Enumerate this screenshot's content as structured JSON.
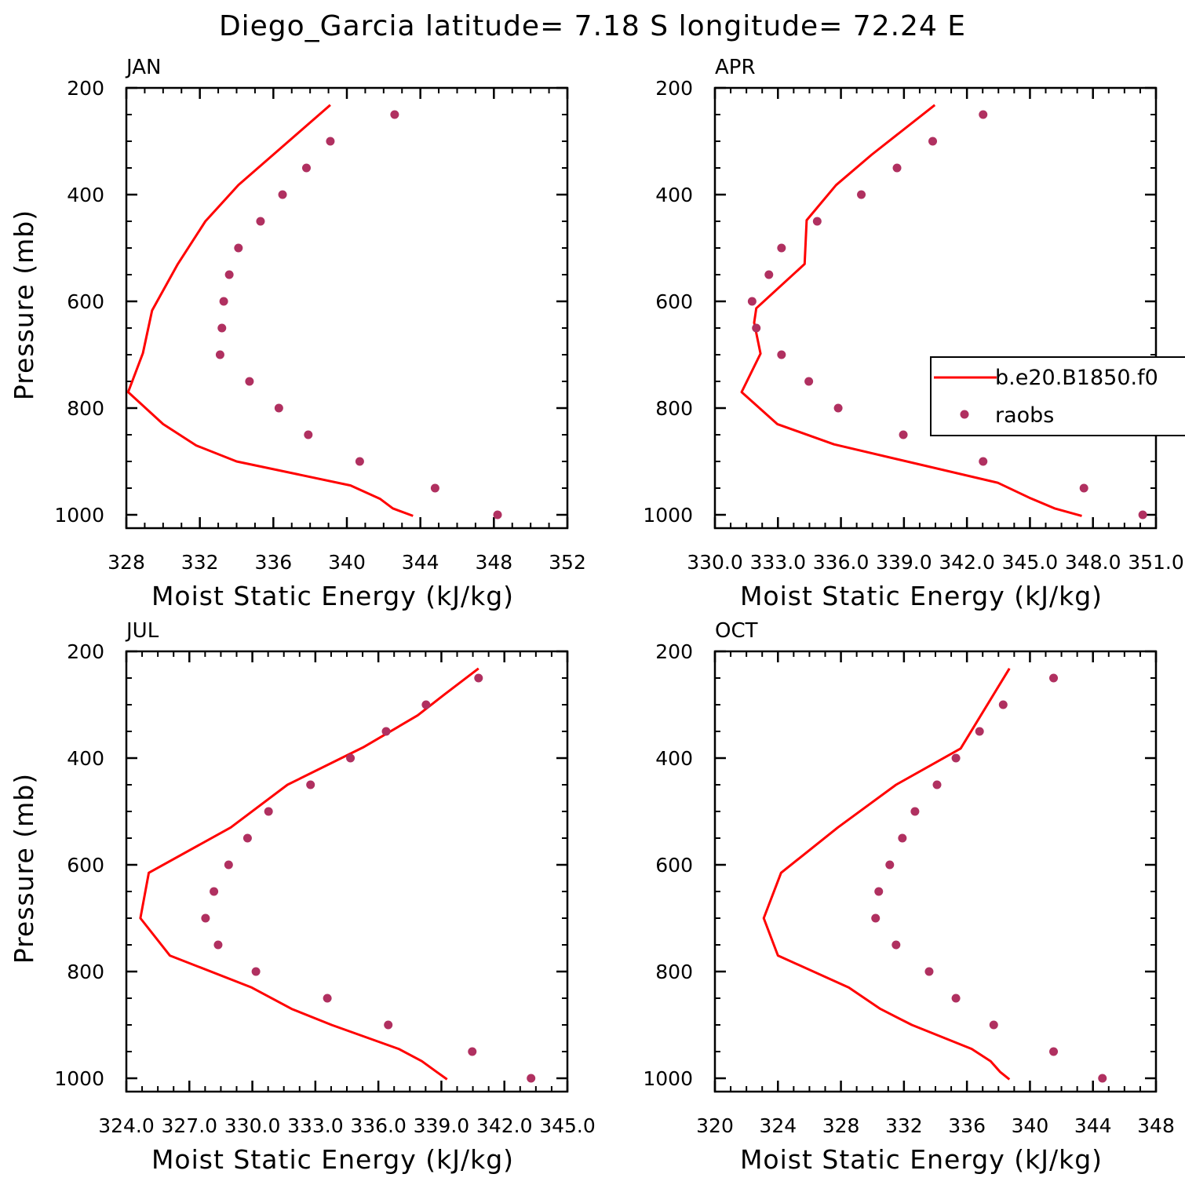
{
  "title": "Diego_Garcia  latitude= 7.18 S longitude= 72.24 E",
  "colors": {
    "model": "#ff0000",
    "obs": "#b03060"
  },
  "legend": {
    "model_label": "b.e20.B1850.f0",
    "obs_label": "raobs"
  },
  "chart_data": [
    {
      "type": "scatter",
      "panel": "JAN",
      "title": "JAN",
      "xlabel": "Moist Static Energy (kJ/kg)",
      "ylabel": "Pressure (mb)",
      "xlim": [
        328,
        352
      ],
      "ylim": [
        1000,
        200
      ],
      "xtick_labels": [
        "328",
        "332",
        "336",
        "340",
        "344",
        "348",
        "352"
      ],
      "ytick_labels": [
        "200",
        "400",
        "600",
        "800",
        "1000"
      ],
      "series": [
        {
          "name": "b.e20.B1850.f0",
          "kind": "line",
          "x": [
            339.1,
            336.0,
            334.1,
            332.3,
            330.8,
            329.4,
            328.9,
            328.1,
            330.0,
            331.8,
            334.0,
            340.2,
            341.8,
            342.5,
            343.6
          ],
          "y": [
            232,
            325,
            382,
            450,
            530,
            617,
            697,
            770,
            830,
            870,
            900,
            945,
            970,
            988,
            1002
          ]
        },
        {
          "name": "raobs",
          "kind": "scatter",
          "x": [
            342.6,
            339.1,
            337.8,
            336.5,
            335.3,
            334.1,
            333.6,
            333.3,
            333.2,
            333.1,
            334.7,
            336.3,
            337.9,
            340.7,
            344.8,
            348.2
          ],
          "y": [
            250,
            300,
            350,
            400,
            450,
            500,
            550,
            600,
            650,
            700,
            750,
            800,
            850,
            900,
            950,
            1000
          ]
        }
      ]
    },
    {
      "type": "scatter",
      "panel": "APR",
      "title": "APR",
      "xlabel": "Moist Static Energy (kJ/kg)",
      "ylabel": "",
      "xlim": [
        330.03,
        351.03
      ],
      "ylim": [
        1000,
        200
      ],
      "xtick_labels": [
        "330.0",
        "333.0",
        "336.0",
        "339.0",
        "342.0",
        "345.0",
        "348.0",
        "351.0"
      ],
      "ytick_labels": [
        "200",
        "400",
        "600",
        "800",
        "1000"
      ],
      "series": [
        {
          "name": "b.e20.B1850.f0",
          "kind": "line",
          "x": [
            340.5,
            337.5,
            335.8,
            334.4,
            334.3,
            332.0,
            331.9,
            332.2,
            331.3,
            333.0,
            335.7,
            343.5,
            345.0,
            346.2,
            347.5
          ],
          "y": [
            232,
            325,
            382,
            448,
            530,
            613,
            640,
            698,
            770,
            830,
            868,
            940,
            968,
            988,
            1002
          ]
        },
        {
          "name": "raobs",
          "kind": "scatter",
          "x": [
            342.8,
            340.4,
            338.7,
            337.0,
            334.9,
            333.2,
            332.6,
            331.8,
            332.0,
            333.2,
            334.5,
            335.9,
            339.0,
            342.8,
            347.6,
            350.4
          ],
          "y": [
            250,
            300,
            350,
            400,
            450,
            500,
            550,
            600,
            650,
            700,
            750,
            800,
            850,
            900,
            950,
            1000
          ]
        }
      ]
    },
    {
      "type": "scatter",
      "panel": "JUL",
      "title": "JUL",
      "xlabel": "Moist Static Energy (kJ/kg)",
      "ylabel": "Pressure (mb)",
      "xlim": [
        324.03,
        345.03
      ],
      "ylim": [
        1000,
        200
      ],
      "xtick_labels": [
        "324.0",
        "327.0",
        "330.0",
        "333.0",
        "336.0",
        "339.0",
        "342.0",
        "345.0"
      ],
      "ytick_labels": [
        "200",
        "400",
        "600",
        "800",
        "1000"
      ],
      "series": [
        {
          "name": "b.e20.B1850.f0",
          "kind": "line",
          "x": [
            340.8,
            339.2,
            337.9,
            335.3,
            331.7,
            329.0,
            325.1,
            324.7,
            326.1,
            330.0,
            331.9,
            333.8,
            337.0,
            338.1,
            338.8,
            339.3
          ],
          "y": [
            232,
            280,
            320,
            380,
            450,
            530,
            615,
            700,
            770,
            830,
            870,
            900,
            945,
            968,
            988,
            1002
          ]
        },
        {
          "name": "raobs",
          "kind": "scatter",
          "x": [
            340.8,
            338.3,
            336.4,
            334.7,
            332.8,
            330.8,
            329.8,
            328.9,
            328.2,
            327.8,
            328.4,
            330.2,
            333.6,
            336.5,
            340.5,
            343.3
          ],
          "y": [
            250,
            300,
            350,
            400,
            450,
            500,
            550,
            600,
            650,
            700,
            750,
            800,
            850,
            900,
            950,
            1000
          ]
        }
      ]
    },
    {
      "type": "scatter",
      "panel": "OCT",
      "title": "OCT",
      "xlabel": "Moist Static Energy (kJ/kg)",
      "ylabel": "",
      "xlim": [
        320,
        348
      ],
      "ylim": [
        1000,
        200
      ],
      "xtick_labels": [
        "320",
        "324",
        "328",
        "332",
        "336",
        "340",
        "344",
        "348"
      ],
      "ytick_labels": [
        "200",
        "400",
        "600",
        "800",
        "1000"
      ],
      "series": [
        {
          "name": "b.e20.B1850.f0",
          "kind": "line",
          "x": [
            338.7,
            335.6,
            331.5,
            327.8,
            324.2,
            323.1,
            324.0,
            328.5,
            330.5,
            332.5,
            336.3,
            337.5,
            338.1,
            338.7
          ],
          "y": [
            232,
            382,
            450,
            530,
            615,
            700,
            770,
            830,
            870,
            900,
            945,
            968,
            988,
            1002
          ]
        },
        {
          "name": "raobs",
          "kind": "scatter",
          "x": [
            341.5,
            338.3,
            336.8,
            335.3,
            334.1,
            332.7,
            331.9,
            331.1,
            330.4,
            330.2,
            331.5,
            333.6,
            335.3,
            337.7,
            341.5,
            344.6
          ],
          "y": [
            250,
            300,
            350,
            400,
            450,
            500,
            550,
            600,
            650,
            700,
            750,
            800,
            850,
            900,
            950,
            1000
          ]
        }
      ]
    }
  ]
}
